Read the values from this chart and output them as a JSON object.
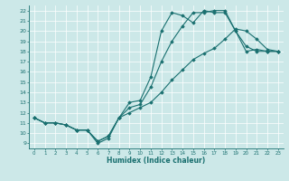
{
  "xlabel": "Humidex (Indice chaleur)",
  "bg_color": "#cce8e8",
  "line_color": "#1a7070",
  "xlim": [
    -0.5,
    23.5
  ],
  "ylim": [
    8.5,
    22.5
  ],
  "xticks": [
    0,
    1,
    2,
    3,
    4,
    5,
    6,
    7,
    8,
    9,
    10,
    11,
    12,
    13,
    14,
    15,
    16,
    17,
    18,
    19,
    20,
    21,
    22,
    23
  ],
  "yticks": [
    9,
    10,
    11,
    12,
    13,
    14,
    15,
    16,
    17,
    18,
    19,
    20,
    21,
    22
  ],
  "series": [
    {
      "x": [
        0,
        1,
        2,
        3,
        4,
        5,
        6,
        7,
        8,
        9,
        10,
        11,
        12,
        13,
        14,
        15,
        16,
        17,
        18,
        19,
        20,
        21,
        22,
        23
      ],
      "y": [
        11.5,
        11,
        11,
        10.8,
        10.3,
        10.3,
        9.0,
        9.5,
        11.5,
        13.0,
        13.2,
        15.5,
        20.0,
        21.8,
        21.5,
        20.8,
        22.0,
        21.8,
        21.8,
        20.0,
        18.5,
        18.0,
        18.0,
        18.0
      ]
    },
    {
      "x": [
        0,
        1,
        2,
        3,
        4,
        5,
        6,
        7,
        8,
        9,
        10,
        11,
        12,
        13,
        14,
        15,
        16,
        17,
        18,
        19,
        20,
        21,
        22,
        23
      ],
      "y": [
        11.5,
        11,
        11,
        10.8,
        10.3,
        10.3,
        9.2,
        9.7,
        11.5,
        12.5,
        12.8,
        14.5,
        17.0,
        19.0,
        20.5,
        21.8,
        21.8,
        22.0,
        22.0,
        20.0,
        18.0,
        18.2,
        18.0,
        18.0
      ]
    },
    {
      "x": [
        0,
        1,
        2,
        3,
        4,
        5,
        6,
        7,
        8,
        9,
        10,
        11,
        12,
        13,
        14,
        15,
        16,
        17,
        18,
        19,
        20,
        21,
        22,
        23
      ],
      "y": [
        11.5,
        11,
        11,
        10.8,
        10.3,
        10.3,
        9.2,
        9.7,
        11.5,
        12.0,
        12.5,
        13.0,
        14.0,
        15.2,
        16.2,
        17.2,
        17.8,
        18.3,
        19.2,
        20.2,
        20.0,
        19.2,
        18.2,
        18.0
      ]
    }
  ]
}
